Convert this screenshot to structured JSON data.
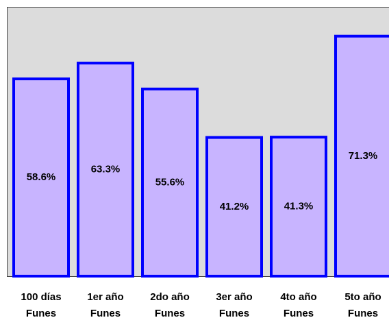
{
  "chart_data": {
    "type": "bar",
    "categories": [
      "100 días Funes",
      "1er año Funes",
      "2do año Funes",
      "3er año Funes",
      "4to año Funes",
      "5to año Funes"
    ],
    "values": [
      58.6,
      63.3,
      55.6,
      41.2,
      41.3,
      71.3
    ],
    "value_labels": [
      "58.6%",
      "63.3%",
      "55.6%",
      "41.2%",
      "41.3%",
      "71.3%"
    ],
    "color": "#c8b4ff",
    "edge_color": "#0000ff",
    "background": "#dcdcdc",
    "ylim": [
      0,
      80
    ]
  }
}
